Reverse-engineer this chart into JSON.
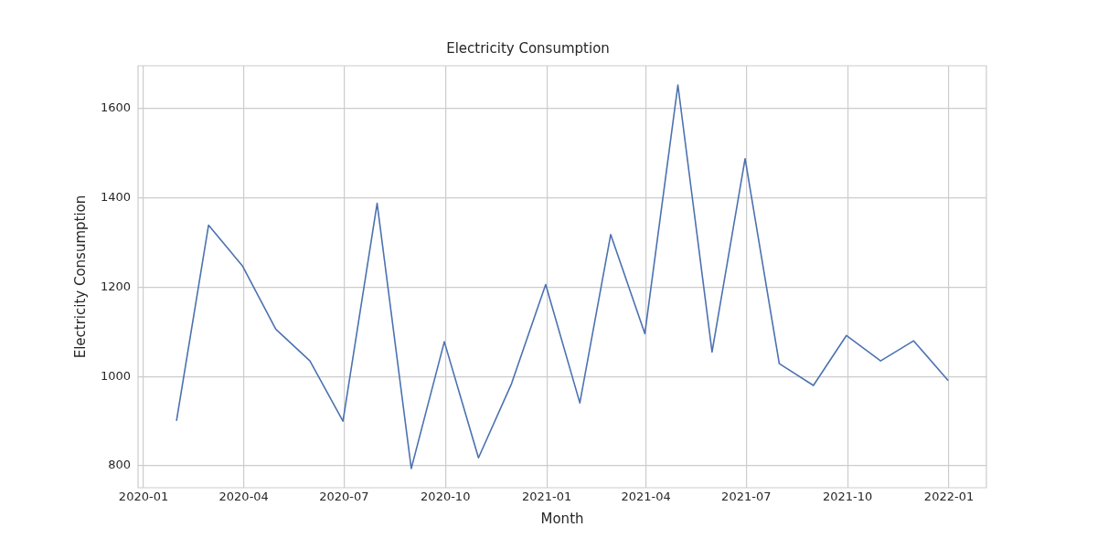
{
  "chart_data": {
    "type": "line",
    "title": "Electricity Consumption",
    "xlabel": "Month",
    "ylabel": "Electricity Consumption",
    "x": [
      "2020-01-31",
      "2020-02-29",
      "2020-03-31",
      "2020-04-30",
      "2020-05-31",
      "2020-06-30",
      "2020-07-31",
      "2020-08-31",
      "2020-09-30",
      "2020-10-31",
      "2020-11-30",
      "2020-12-31",
      "2021-01-31",
      "2021-02-28",
      "2021-03-31",
      "2021-04-30",
      "2021-05-31",
      "2021-06-30",
      "2021-07-31",
      "2021-08-31",
      "2021-09-30",
      "2021-10-31",
      "2021-11-30",
      "2021-12-31"
    ],
    "series": [
      {
        "color": "#4c72b0",
        "values": [
          902,
          1339,
          1247,
          1106,
          1035,
          900,
          1388,
          794,
          1078,
          818,
          984,
          1206,
          941,
          1318,
          1096,
          1653,
          1055,
          1488,
          1029,
          980,
          1092,
          1035,
          1080,
          992
        ]
      }
    ],
    "xlim": [
      "2019-12-27",
      "2022-02-04"
    ],
    "xticks": [
      {
        "value": "2020-01-01",
        "label": "2020-01"
      },
      {
        "value": "2020-04-01",
        "label": "2020-04"
      },
      {
        "value": "2020-07-01",
        "label": "2020-07"
      },
      {
        "value": "2020-10-01",
        "label": "2020-10"
      },
      {
        "value": "2021-01-01",
        "label": "2021-01"
      },
      {
        "value": "2021-04-01",
        "label": "2021-04"
      },
      {
        "value": "2021-07-01",
        "label": "2021-07"
      },
      {
        "value": "2021-10-01",
        "label": "2021-10"
      },
      {
        "value": "2022-01-01",
        "label": "2022-01"
      }
    ],
    "ylim": [
      751,
      1696
    ],
    "yticks": [
      800,
      1000,
      1200,
      1400,
      1600
    ],
    "grid": true,
    "legend": false,
    "marker": "none",
    "line_style": "solid"
  }
}
